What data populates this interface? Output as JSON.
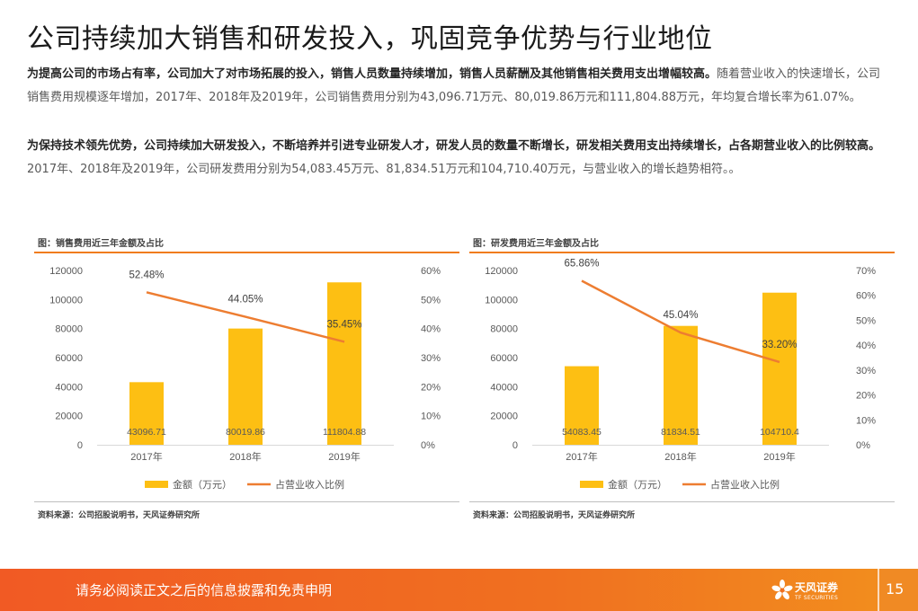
{
  "slide": {
    "title": "公司持续加大销售和研发投入，巩固竞争优势与行业地位",
    "para1_bold": "为提高公司的市场占有率，公司加大了对市场拓展的投入，销售人员数量持续增加，销售人员薪酬及其他销售相关费用支出增幅较高。",
    "para1_text": "随着营业收入的快速增长，公司销售费用规模逐年增加，2017年、2018年及2019年，公司销售费用分别为43,096.71万元、80,019.86万元和111,804.88万元，年均复合增长率为61.07%。",
    "para2_bold": "为保持技术领先优势，公司持续加大研发投入，不断培养并引进专业研发人才，研发人员的数量不断增长，研发相关费用支出持续增长，占各期营业收入的比例较高。",
    "para2_text": "2017年、2018年及2019年，公司研发费用分别为54,083.45万元、81,834.51万元和104,710.40万元，与营业收入的增长趋势相符。。"
  },
  "chart_data": [
    {
      "type": "bar",
      "title": "图：销售费用近三年金额及占比",
      "source": "资料来源：公司招股说明书，天风证券研究所",
      "categories": [
        "2017年",
        "2018年",
        "2019年"
      ],
      "series": [
        {
          "name": "金额（万元）",
          "type": "bar",
          "axis": "left",
          "values": [
            43096.71,
            80019.86,
            111804.88
          ],
          "labels": [
            "43096.71",
            "80019.86",
            "111804.88"
          ],
          "color": "#fdbf13"
        },
        {
          "name": "占营业收入比例",
          "type": "line",
          "axis": "right",
          "values": [
            52.48,
            44.05,
            35.45
          ],
          "labels": [
            "52.48%",
            "44.05%",
            "35.45%"
          ],
          "color": "#ed7d31"
        }
      ],
      "y_left": {
        "min": 0,
        "max": 120000,
        "ticks": [
          "0",
          "20000",
          "40000",
          "60000",
          "80000",
          "100000",
          "120000"
        ]
      },
      "y_right": {
        "min": 0,
        "max": 60,
        "ticks": [
          "0%",
          "10%",
          "20%",
          "30%",
          "40%",
          "50%",
          "60%"
        ]
      },
      "legend": "bottom",
      "grid": false
    },
    {
      "type": "bar",
      "title": "图：研发费用近三年金额及占比",
      "source": "资料来源：公司招股说明书，天风证券研究所",
      "categories": [
        "2017年",
        "2018年",
        "2019年"
      ],
      "series": [
        {
          "name": "金额（万元）",
          "type": "bar",
          "axis": "left",
          "values": [
            54083.45,
            81834.51,
            104710.4
          ],
          "labels": [
            "54083.45",
            "81834.51",
            "104710.4"
          ],
          "color": "#fdbf13"
        },
        {
          "name": "占营业收入比例",
          "type": "line",
          "axis": "right",
          "values": [
            65.86,
            45.04,
            33.2
          ],
          "labels": [
            "65.86%",
            "45.04%",
            "33.20%"
          ],
          "color": "#ed7d31"
        }
      ],
      "y_left": {
        "min": 0,
        "max": 120000,
        "ticks": [
          "0",
          "20000",
          "40000",
          "60000",
          "80000",
          "100000",
          "120000"
        ]
      },
      "y_right": {
        "min": 0,
        "max": 70,
        "ticks": [
          "0%",
          "10%",
          "20%",
          "30%",
          "40%",
          "50%",
          "60%",
          "70%"
        ]
      },
      "legend": "bottom",
      "grid": false
    }
  ],
  "footer": {
    "disclaimer": "请务必阅读正文之后的信息披露和免责申明",
    "logo_text": "天风证券",
    "logo_subtext": "TF SECURITIES",
    "page_number": "15",
    "icon": "flower-logo-icon"
  },
  "colors": {
    "accent": "#f07c1c",
    "bar": "#fdbf13",
    "line": "#ed7d31",
    "footer": "#f15a24"
  }
}
